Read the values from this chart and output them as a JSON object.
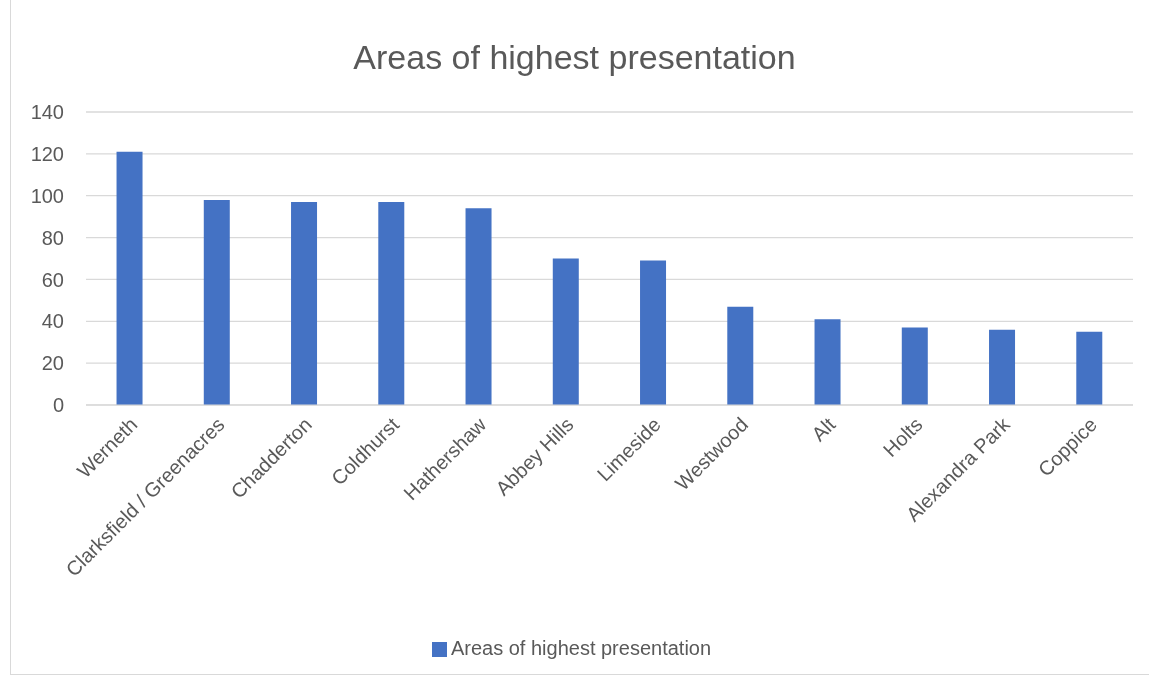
{
  "chart_data": {
    "type": "bar",
    "title": "Areas of highest presentation",
    "categories": [
      "Werneth",
      "Clarksfield / Greenacres",
      "Chadderton",
      "Coldhurst",
      "Hathershaw",
      "Abbey Hills",
      "Limeside",
      "Westwood",
      "Alt",
      "Holts",
      "Alexandra Park",
      "Coppice"
    ],
    "series": [
      {
        "name": "Areas of highest presentation",
        "color": "#4472c4",
        "values": [
          121,
          98,
          97,
          97,
          94,
          70,
          69,
          47,
          41,
          37,
          36,
          35
        ]
      }
    ],
    "ylim": [
      0,
      140
    ],
    "yticks": [
      0,
      20,
      40,
      60,
      80,
      100,
      120,
      140
    ],
    "grid": "y",
    "legend": "bottom"
  }
}
